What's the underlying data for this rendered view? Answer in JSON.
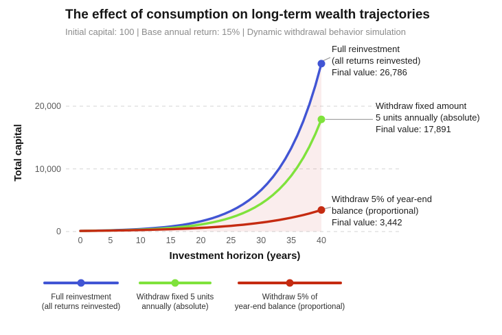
{
  "chart_data": {
    "type": "line",
    "title": "The effect of consumption on long-term wealth trajectories",
    "subtitle": "Initial capital: 100 | Base annual return: 15% | Dynamic withdrawal behavior simulation",
    "xlabel": "Investment horizon (years)",
    "ylabel": "Total capital",
    "xlim": [
      0,
      40
    ],
    "ylim": [
      0,
      27000
    ],
    "grid": "horizontal-dashed",
    "grid_color": "#dcdcdc",
    "fill_under_top_series_color": "rgba(217,119,119,0.13)",
    "connector_color": "#9a9a9a",
    "x_ticks": [
      0,
      5,
      10,
      15,
      20,
      25,
      30,
      35,
      40
    ],
    "y_ticks": [
      {
        "value": 0,
        "label": "0"
      },
      {
        "value": 10000,
        "label": "10,000"
      },
      {
        "value": 20000,
        "label": "20,000"
      }
    ],
    "x": [
      0,
      1,
      2,
      3,
      4,
      5,
      6,
      7,
      8,
      9,
      10,
      11,
      12,
      13,
      14,
      15,
      16,
      17,
      18,
      19,
      20,
      21,
      22,
      23,
      24,
      25,
      26,
      27,
      28,
      29,
      30,
      31,
      32,
      33,
      34,
      35,
      36,
      37,
      38,
      39,
      40
    ],
    "series": [
      {
        "name": "full-reinvestment",
        "color": "#4155d4",
        "final_value": 26786,
        "values": [
          100,
          115,
          132,
          152,
          175,
          201,
          231,
          266,
          306,
          352,
          405,
          465,
          535,
          615,
          708,
          814,
          936,
          1076,
          1238,
          1423,
          1637,
          1882,
          2164,
          2489,
          2863,
          3292,
          3786,
          4354,
          5007,
          5758,
          6621,
          7614,
          8757,
          10070,
          11581,
          13318,
          15315,
          17613,
          20254,
          23293,
          26786
        ],
        "annotation": [
          "Full reinvestment",
          "(all returns reinvested)",
          "Final value: 26,786"
        ],
        "legend": [
          "Full reinvestment",
          "(all returns reinvested)"
        ]
      },
      {
        "name": "withdraw-fixed-5-units",
        "color": "#7fe23c",
        "final_value": 17891,
        "values": [
          100,
          110,
          122,
          135,
          150,
          167,
          188,
          211,
          237,
          268,
          303,
          343,
          390,
          444,
          505,
          576,
          657,
          751,
          858,
          982,
          1124,
          1288,
          1476,
          1693,
          1942,
          2228,
          2557,
          2936,
          3371,
          3872,
          4447,
          5110,
          5871,
          6747,
          7754,
          8912,
          10243,
          11775,
          13536,
          15562,
          17891
        ],
        "annotation": [
          "Withdraw fixed amount",
          "5 units annually (absolute)",
          "Final value: 17,891"
        ],
        "legend": [
          "Withdraw fixed 5 units",
          "annually (absolute)"
        ]
      },
      {
        "name": "withdraw-5-percent-proportional",
        "color": "#c52b11",
        "final_value": 3442,
        "values": [
          100,
          109,
          119,
          130,
          142,
          156,
          170,
          186,
          203,
          222,
          242,
          265,
          289,
          316,
          345,
          377,
          412,
          450,
          492,
          537,
          587,
          641,
          700,
          765,
          836,
          913,
          998,
          1090,
          1191,
          1301,
          1421,
          1553,
          1696,
          1853,
          2025,
          2212,
          2416,
          2640,
          2884,
          3151,
          3442
        ],
        "annotation": [
          "Withdraw 5% of year-end",
          "balance (proportional)",
          "Final value: 3,442"
        ],
        "legend": [
          "Withdraw 5% of",
          "year-end balance (proportional)"
        ]
      }
    ]
  }
}
